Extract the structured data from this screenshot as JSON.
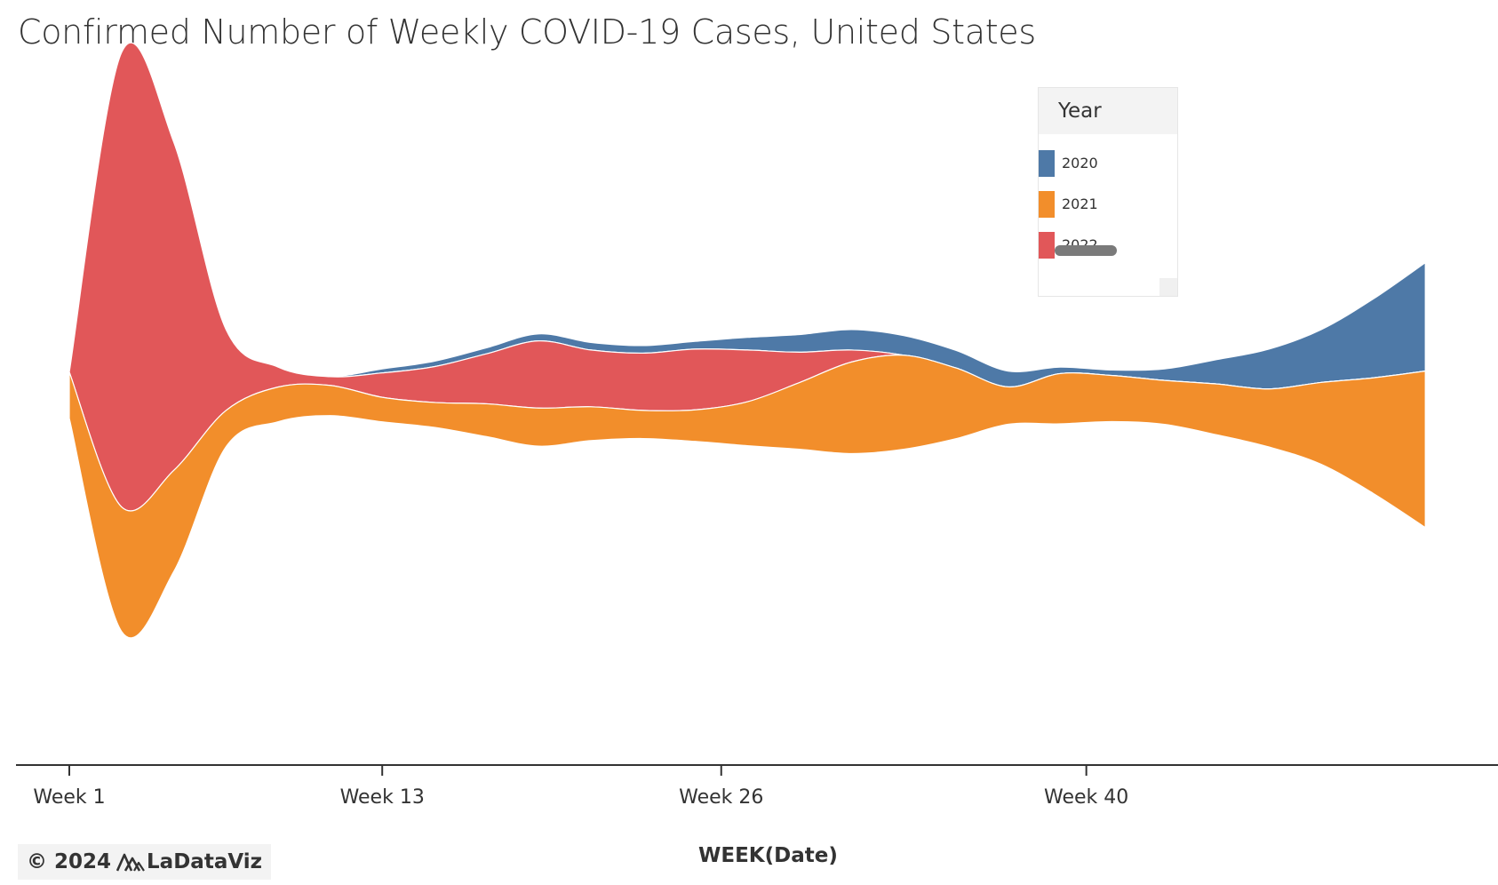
{
  "title": "Confirmed Number of Weekly COVID-19 Cases, United States",
  "credit": {
    "copyright": "© 2024",
    "brand": "LaDataViz",
    "logo_icon": "mountain-logo-icon"
  },
  "chart_data": {
    "type": "area",
    "subtype": "streamgraph",
    "title": "Confirmed Number of Weekly COVID-19 Cases, United States",
    "xlabel": "WEEK(Date)",
    "ylabel": "",
    "x_ticks": [
      {
        "label": "Week 1",
        "week": 1
      },
      {
        "label": "Week 13",
        "week": 13
      },
      {
        "label": "Week 26",
        "week": 26
      },
      {
        "label": "Week 40",
        "week": 40
      }
    ],
    "y_axis_shown": false,
    "grid": false,
    "legend": {
      "title": "Year",
      "placement": "top-right"
    },
    "weeks": [
      1,
      3,
      5,
      7,
      9,
      11,
      13,
      15,
      17,
      19,
      21,
      23,
      25,
      27,
      29,
      31,
      33,
      35,
      37,
      39,
      41,
      43,
      45,
      47,
      49,
      51,
      53
    ],
    "series": [
      {
        "name": "2020",
        "color": "#4e79a7",
        "values": [
          0,
          0,
          0,
          0,
          0,
          0.4,
          4.5,
          6.1,
          6.8,
          7.9,
          8.5,
          8.5,
          8.7,
          14.2,
          19.8,
          23.1,
          22.1,
          19.7,
          17.8,
          7.3,
          6.2,
          13.0,
          27.4,
          44.8,
          59.4,
          88.7,
          122
        ]
      },
      {
        "name": "2021",
        "color": "#f28e2b",
        "values": [
          52,
          140,
          114,
          41,
          39,
          34,
          27.6,
          28.1,
          36.9,
          42.9,
          38.1,
          31.7,
          35.5,
          49.4,
          75.0,
          103.1,
          105.8,
          79.6,
          42.1,
          56.6,
          51.8,
          49.4,
          57.2,
          65.2,
          92.0,
          130,
          176
        ]
      },
      {
        "name": "2022",
        "color": "#e15759",
        "values": [
          0,
          511,
          370,
          92,
          22.6,
          9.8,
          27.4,
          40.3,
          56.3,
          75.6,
          63.9,
          64.4,
          68.4,
          58.3,
          34.2,
          13.4,
          0,
          0,
          0,
          0,
          0,
          0,
          0,
          0,
          0,
          0,
          0
        ]
      }
    ]
  }
}
